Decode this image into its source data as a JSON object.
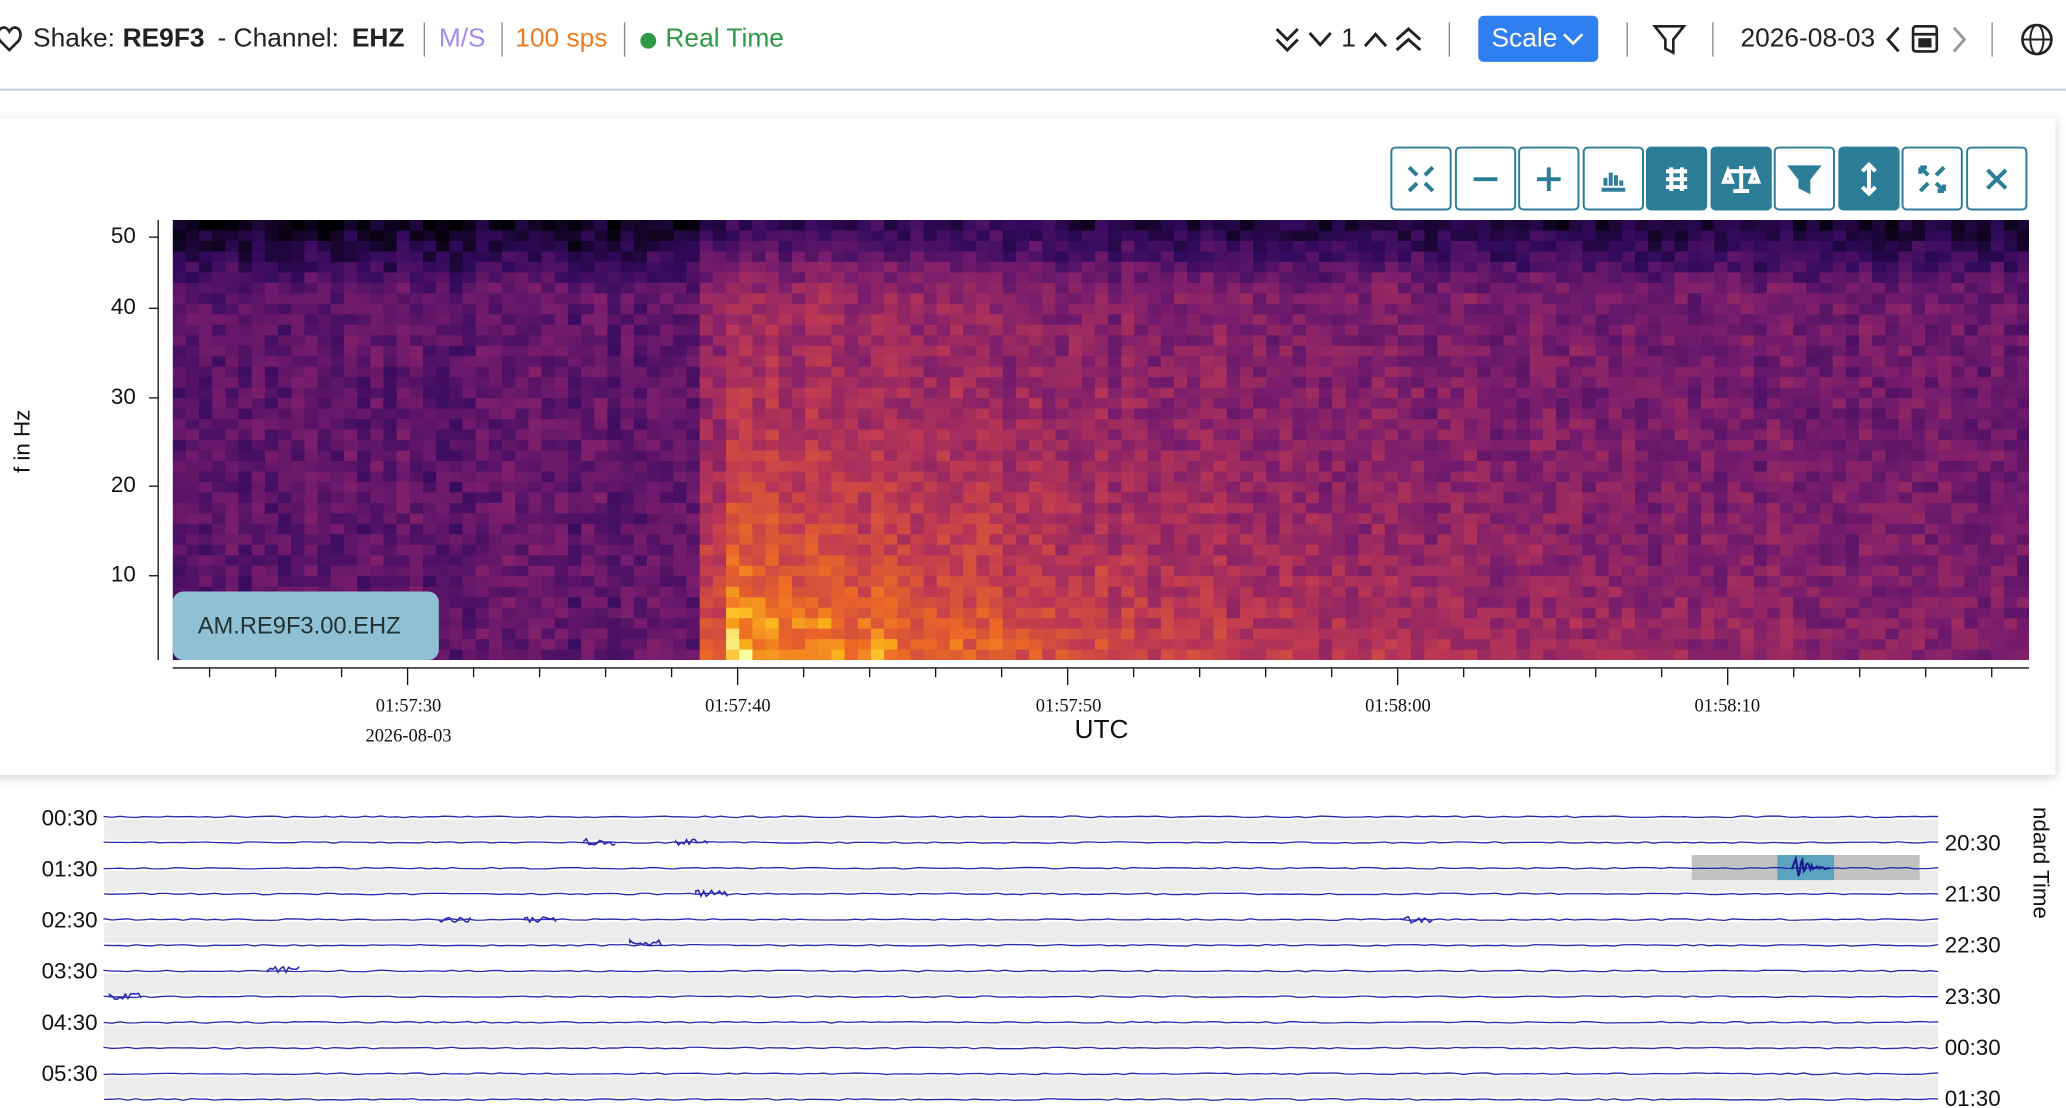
{
  "header": {
    "shake_label": "Shake:",
    "station": "RE9F3",
    "channel_label": "- Channel:",
    "channel": "EHZ",
    "units": "M/S",
    "rate": "100 sps",
    "mode": "Real Time",
    "page": "1",
    "scale_button": "Scale",
    "date": "2026-08-03"
  },
  "spectrogram": {
    "y_axis_label": "f in Hz",
    "yticks": [
      "50",
      "40",
      "30",
      "20",
      "10"
    ],
    "station_badge": "AM.RE9F3.00.EHZ",
    "xticks": [
      "01:57:30",
      "01:57:40",
      "01:57:50",
      "01:58:00",
      "01:58:10"
    ],
    "x_date": "2026-08-03",
    "x_axis_label": "UTC"
  },
  "helicorder": {
    "left_times": [
      "00:30",
      "01:30",
      "02:30",
      "03:30",
      "04:30",
      "05:30"
    ],
    "right_times": [
      "20:30",
      "21:30",
      "22:30",
      "23:30",
      "00:30",
      "01:30"
    ],
    "right_axis_label": "ndard Time"
  }
}
